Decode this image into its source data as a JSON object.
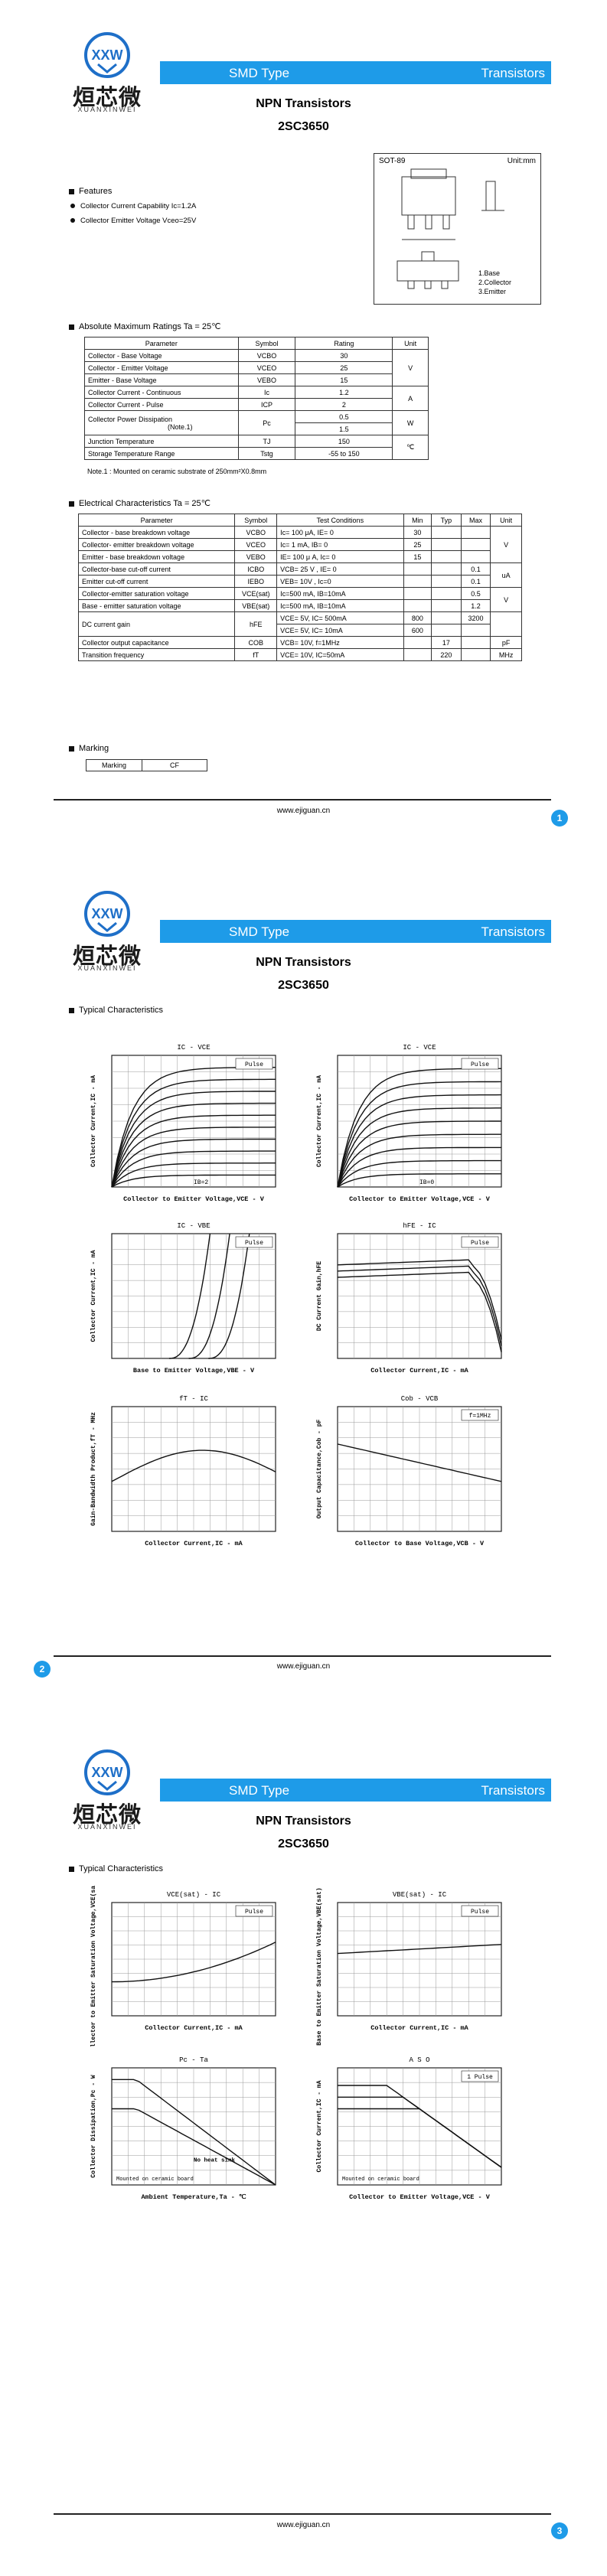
{
  "logo": {
    "cn": "烜芯微",
    "en": "XUANXINWEI"
  },
  "banner": {
    "left": "SMD Type",
    "right": "Transistors"
  },
  "doc": {
    "title": "NPN  Transistors",
    "part": "2SC3650"
  },
  "package": {
    "name": "SOT-89",
    "unit": "Unit:mm",
    "pins": [
      "1.Base",
      "2.Collector",
      "3.Emitter"
    ]
  },
  "features": {
    "heading": "Features",
    "items": [
      "Collector Current Capability  Ic=1.2A",
      "Collector Emitter Voltage  Vceo=25V"
    ]
  },
  "abs_max": {
    "heading": "Absolute Maximum Ratings  Ta = 25℃",
    "headers": [
      "Parameter",
      "Symbol",
      "Rating",
      "Unit"
    ],
    "rows": [
      {
        "param": "Collector - Base Voltage",
        "sym": "VCBO",
        "rating": "30"
      },
      {
        "param": "Collector - Emitter Voltage",
        "sym": "VCEO",
        "rating": "25"
      },
      {
        "param": "Emitter - Base Voltage",
        "sym": "VEBO",
        "rating": "15"
      },
      {
        "param": "Collector Current  - Continuous",
        "sym": "Ic",
        "rating": "1.2"
      },
      {
        "param": "Collector Current  - Pulse",
        "sym": "ICP",
        "rating": "2"
      },
      {
        "param": "Collector Power Dissipation",
        "note": "(Note.1)",
        "sym": "Pc",
        "rating": "0.5",
        "rating2": "1.5"
      },
      {
        "param": "Junction Temperature",
        "sym": "TJ",
        "rating": "150"
      },
      {
        "param": "Storage Temperature Range",
        "sym": "Tstg",
        "rating": "-55 to 150"
      }
    ],
    "units": [
      "V",
      "A",
      "W",
      "℃"
    ],
    "note": "Note.1 : Mounted on ceramic substrate of 250mm²X0.8mm"
  },
  "elec": {
    "heading": "Electrical Characteristics  Ta = 25℃",
    "headers": [
      "Parameter",
      "Symbol",
      "Test Conditions",
      "Min",
      "Typ",
      "Max",
      "Unit"
    ],
    "rows": [
      {
        "param": "Collector - base breakdown voltage",
        "sym": "VCBO",
        "cond": "Ic= 100 μA,   IE= 0",
        "min": "30",
        "typ": "",
        "max": ""
      },
      {
        "param": "Collector- emitter breakdown voltage",
        "sym": "VCEO",
        "cond": "Ic= 1 mA,    IB= 0",
        "min": "25",
        "typ": "",
        "max": ""
      },
      {
        "param": "Emitter - base breakdown voltage",
        "sym": "VEBO",
        "cond": "IE= 100 μ A,   Ic= 0",
        "min": "15",
        "typ": "",
        "max": ""
      },
      {
        "param": "Collector-base cut-off current",
        "sym": "ICBO",
        "cond": "VCB= 25 V ,  IE= 0",
        "min": "",
        "typ": "",
        "max": "0.1"
      },
      {
        "param": "Emitter cut-off current",
        "sym": "IEBO",
        "cond": "VEB= 10V ,  Ic=0",
        "min": "",
        "typ": "",
        "max": "0.1"
      },
      {
        "param": "Collector-emitter saturation voltage",
        "sym": "VCE(sat)",
        "cond": "Ic=500 mA, IB=10mA",
        "min": "",
        "typ": "",
        "max": "0.5"
      },
      {
        "param": "Base - emitter saturation voltage",
        "sym": "VBE(sat)",
        "cond": "Ic=500 mA, IB=10mA",
        "min": "",
        "typ": "",
        "max": "1.2"
      },
      {
        "param": "DC current gain",
        "sym": "hFE",
        "cond": "VCE= 5V, IC= 500mA",
        "min": "800",
        "typ": "",
        "max": "3200"
      },
      {
        "param": "",
        "sym": "",
        "cond": "VCE= 5V, IC= 10mA",
        "min": "600",
        "typ": "",
        "max": ""
      },
      {
        "param": "Collector output  capacitance",
        "sym": "COB",
        "cond": "VCB= 10V, f=1MHz",
        "min": "",
        "typ": "17",
        "max": ""
      },
      {
        "param": "Transition frequency",
        "sym": "fT",
        "cond": "VCE= 10V, IC=50mA",
        "min": "",
        "typ": "220",
        "max": ""
      }
    ],
    "units": {
      "v": "V",
      "ua": "uA",
      "v2": "V",
      "pf": "pF",
      "mhz": "MHz"
    }
  },
  "marking": {
    "heading": "Marking",
    "label": "Marking",
    "value": "CF"
  },
  "footer": {
    "url": "www.ejiguan.cn",
    "pages": [
      "1",
      "2",
      "3"
    ]
  },
  "typical": {
    "heading": "Typical  Characteristics"
  },
  "charts": {
    "ic_vce": {
      "title": "IC - VCE",
      "xlabel": "Collector to Emitter Voltage,VCE - V",
      "ylabel": "Collector Current,IC - mA",
      "tag": "Pulse",
      "note": "IB=2"
    },
    "ic_vce2": {
      "title": "IC - VCE",
      "xlabel": "Collector to Emitter Voltage,VCE - V",
      "ylabel": "Collector Current,IC - mA",
      "tag": "Pulse",
      "note": "IB=0"
    },
    "ic_vbe": {
      "title": "IC - VBE",
      "xlabel": "Base to Emitter Voltage,VBE - V",
      "ylabel": "Collector Current,IC - mA",
      "tag": "Pulse"
    },
    "hfe_ic": {
      "title": "hFE - IC",
      "xlabel": "Collector Current,IC - mA",
      "ylabel": "DC Current Gain,hFE",
      "tag": "Pulse"
    },
    "ft_ic": {
      "title": "fT - IC",
      "xlabel": "Collector Current,IC - mA",
      "ylabel": "Gain-Bandwidth Product,fT - MHz"
    },
    "cob_vcb": {
      "title": "Cob - VCB",
      "xlabel": "Collector to Base Voltage,VCB - V",
      "ylabel": "Output Capacitance,Cob - pF",
      "tag": "f=1MHz"
    },
    "vcesat": {
      "title": "VCE(sat) - IC",
      "xlabel": "Collector Current,IC - mA",
      "ylabel": "Collector to Emitter Saturation Voltage,VCE(sat) - V",
      "tag": "Pulse"
    },
    "vbesat": {
      "title": "VBE(sat) - IC",
      "xlabel": "Collector Current,IC - mA",
      "ylabel": "Base to Emitter Saturation Voltage,VBE(sat) - V",
      "tag": "Pulse"
    },
    "pc_ta": {
      "title": "Pc - Ta",
      "xlabel": "Ambient Temperature,Ta - ℃",
      "ylabel": "Collector Dissipation,Pc - W",
      "tag1": "No heat sink",
      "tag2": "Mounted on ceramic board"
    },
    "aso": {
      "title": "A S O",
      "xlabel": "Collector to Emitter Voltage,VCE - V",
      "ylabel": "Collector Current,IC - mA",
      "tag": "1 Pulse",
      "tag2": "Mounted on ceramic board"
    }
  }
}
